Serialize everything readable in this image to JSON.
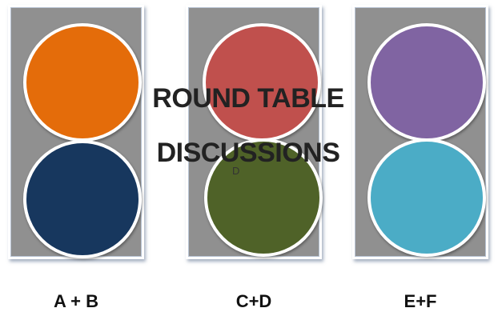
{
  "title_line1": "ROUND TABLE",
  "title_line2": "DISCUSSIONS",
  "stray_text": "D",
  "groups": [
    {
      "label": "A + B",
      "top_color": "#E46C0A",
      "bottom_color": "#17375E"
    },
    {
      "label": "C+D",
      "top_color": "#C0504D",
      "bottom_color": "#4F6228"
    },
    {
      "label": "E+F",
      "top_color": "#8064A2",
      "bottom_color": "#4BACC6"
    }
  ]
}
